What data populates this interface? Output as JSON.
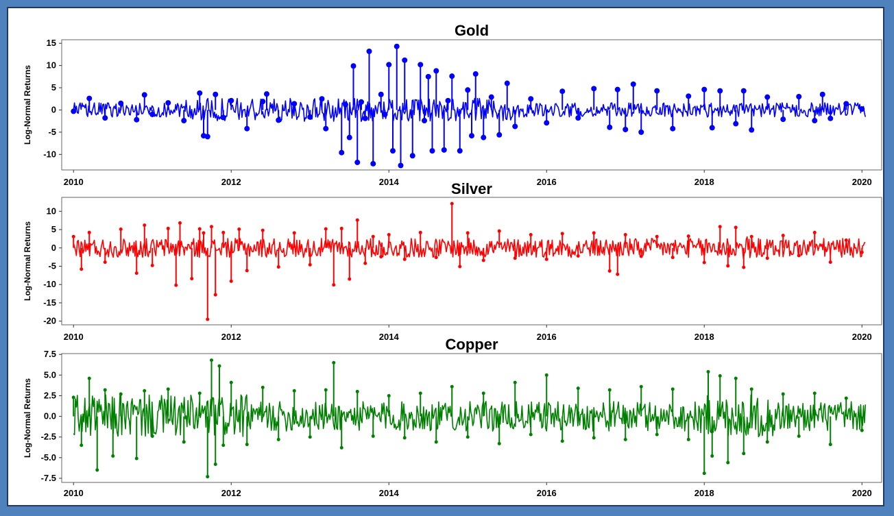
{
  "chart_data": [
    {
      "type": "line",
      "title": "Gold",
      "xlabel": "",
      "ylabel": "Log-Normal Returns",
      "xlim": [
        2009.85,
        2020.25
      ],
      "ylim": [
        -13.5,
        15.8
      ],
      "xticks": [
        2010,
        2012,
        2014,
        2016,
        2018,
        2020
      ],
      "yticks": [
        -10,
        -5,
        0,
        5,
        10,
        15
      ],
      "ytick_labels": [
        "-10",
        "-5",
        "0",
        "5",
        "10",
        "15"
      ],
      "color": "#0000ff",
      "grid": false,
      "series": [
        {
          "x": [
            2010.0,
            2010.2,
            2010.4,
            2010.6,
            2010.8,
            2010.9,
            2011.0,
            2011.2,
            2011.4,
            2011.6,
            2011.65,
            2011.7,
            2011.8,
            2011.9,
            2012.0,
            2012.2,
            2012.4,
            2012.45,
            2012.6,
            2012.8,
            2013.0,
            2013.15,
            2013.2,
            2013.4,
            2013.45,
            2013.5,
            2013.55,
            2013.6,
            2013.65,
            2013.7,
            2013.75,
            2013.8,
            2013.9,
            2013.95,
            2014.0,
            2014.05,
            2014.1,
            2014.15,
            2014.2,
            2014.3,
            2014.4,
            2014.45,
            2014.5,
            2014.55,
            2014.6,
            2014.7,
            2014.75,
            2014.8,
            2014.9,
            2015.0,
            2015.05,
            2015.1,
            2015.2,
            2015.3,
            2015.4,
            2015.5,
            2015.6,
            2015.8,
            2016.0,
            2016.2,
            2016.4,
            2016.6,
            2016.8,
            2016.9,
            2017.0,
            2017.1,
            2017.2,
            2017.4,
            2017.6,
            2017.8,
            2018.0,
            2018.1,
            2018.2,
            2018.4,
            2018.5,
            2018.6,
            2018.8,
            2019.0,
            2019.2,
            2019.4,
            2019.5,
            2019.6,
            2019.8,
            2020.0
          ],
          "y": [
            -0.3,
            2.6,
            -1.8,
            1.5,
            -2.2,
            3.4,
            -1.0,
            1.6,
            -2.4,
            3.8,
            -5.8,
            -6.0,
            3.5,
            -1.7,
            2.1,
            -4.2,
            1.9,
            3.6,
            -2.3,
            1.4,
            -1.6,
            2.5,
            -4.2,
            -9.6,
            1.2,
            -6.2,
            9.9,
            -11.8,
            1.8,
            -1.9,
            13.2,
            -12.1,
            3.5,
            -1.0,
            10.2,
            -9.2,
            14.3,
            -12.5,
            11.2,
            -10.3,
            10.2,
            -2.4,
            7.5,
            -9.2,
            8.8,
            -9.0,
            2.1,
            7.6,
            -9.2,
            4.5,
            -5.8,
            8.1,
            -6.2,
            2.9,
            -5.6,
            6.0,
            -3.7,
            2.5,
            -2.9,
            4.2,
            -1.8,
            4.8,
            -3.9,
            4.6,
            -4.4,
            5.8,
            -5.0,
            4.3,
            -4.2,
            3.1,
            4.6,
            -4.0,
            4.3,
            -3.1,
            4.3,
            -4.5,
            2.9,
            -2.1,
            3.0,
            -2.4,
            3.5,
            -1.9,
            1.4,
            0.2
          ]
        }
      ]
    },
    {
      "type": "line",
      "title": "Silver",
      "xlabel": "",
      "ylabel": "Log-Normal Returns",
      "xlim": [
        2009.85,
        2020.25
      ],
      "ylim": [
        -21.0,
        13.8
      ],
      "xticks": [
        2010,
        2012,
        2014,
        2016,
        2018,
        2020
      ],
      "yticks": [
        -20,
        -15,
        -10,
        -5,
        0,
        5,
        10
      ],
      "ytick_labels": [
        "-20",
        "-15",
        "-10",
        "-5",
        "0",
        "5",
        "10"
      ],
      "color": "#ff0000",
      "grid": false,
      "series": [
        {
          "x": [
            2010.0,
            2010.1,
            2010.2,
            2010.4,
            2010.6,
            2010.8,
            2010.9,
            2011.0,
            2011.2,
            2011.3,
            2011.35,
            2011.5,
            2011.6,
            2011.65,
            2011.7,
            2011.75,
            2011.8,
            2011.9,
            2012.0,
            2012.1,
            2012.2,
            2012.4,
            2012.6,
            2012.8,
            2013.0,
            2013.2,
            2013.3,
            2013.4,
            2013.5,
            2013.6,
            2013.7,
            2013.8,
            2013.9,
            2014.0,
            2014.2,
            2014.4,
            2014.6,
            2014.8,
            2014.9,
            2015.0,
            2015.2,
            2015.4,
            2015.6,
            2015.8,
            2016.0,
            2016.2,
            2016.4,
            2016.6,
            2016.8,
            2016.9,
            2017.0,
            2017.2,
            2017.4,
            2017.6,
            2017.8,
            2018.0,
            2018.2,
            2018.3,
            2018.4,
            2018.5,
            2018.6,
            2018.8,
            2019.0,
            2019.2,
            2019.4,
            2019.6,
            2019.8,
            2020.0
          ],
          "y": [
            3.1,
            -5.8,
            4.2,
            -3.9,
            5.1,
            -6.9,
            6.2,
            -4.8,
            5.3,
            -10.2,
            6.8,
            -8.4,
            5.2,
            4.1,
            -19.5,
            5.8,
            -12.8,
            4.2,
            -9.1,
            5.1,
            -6.2,
            4.8,
            -5.2,
            4.1,
            -4.6,
            5.2,
            -10.1,
            5.3,
            -8.5,
            7.6,
            -4.2,
            3.1,
            -2.4,
            3.6,
            -3.1,
            4.2,
            -2.6,
            12.1,
            -5.1,
            4.1,
            -3.4,
            4.6,
            -2.8,
            3.6,
            -3.1,
            3.9,
            -2.2,
            4.1,
            -6.3,
            -7.2,
            3.6,
            -2.3,
            3.1,
            -2.6,
            3.2,
            -4.0,
            5.8,
            -4.9,
            5.6,
            -5.3,
            3.1,
            -2.8,
            3.4,
            -2.1,
            4.2,
            -3.9,
            2.1,
            -1.2
          ]
        }
      ]
    },
    {
      "type": "line",
      "title": "Copper",
      "xlabel": "",
      "ylabel": "Log-Normal Returns",
      "xlim": [
        2009.85,
        2020.25
      ],
      "ylim": [
        -8.0,
        7.6
      ],
      "xticks": [
        2010,
        2012,
        2014,
        2016,
        2018,
        2020
      ],
      "yticks": [
        -7.5,
        -5.0,
        -2.5,
        0.0,
        2.5,
        5.0,
        7.5
      ],
      "ytick_labels": [
        "-7.5",
        "-5.0",
        "-2.5",
        "0.0",
        "2.5",
        "5.0",
        "7.5"
      ],
      "color": "#008000",
      "grid": false,
      "series": [
        {
          "x": [
            2010.0,
            2010.1,
            2010.2,
            2010.3,
            2010.4,
            2010.5,
            2010.6,
            2010.8,
            2010.9,
            2011.0,
            2011.2,
            2011.4,
            2011.6,
            2011.7,
            2011.75,
            2011.8,
            2011.85,
            2011.9,
            2012.0,
            2012.2,
            2012.4,
            2012.6,
            2012.8,
            2013.0,
            2013.2,
            2013.3,
            2013.4,
            2013.6,
            2013.8,
            2014.0,
            2014.2,
            2014.4,
            2014.6,
            2014.8,
            2015.0,
            2015.2,
            2015.4,
            2015.6,
            2015.8,
            2016.0,
            2016.2,
            2016.4,
            2016.6,
            2016.8,
            2017.0,
            2017.2,
            2017.4,
            2017.6,
            2017.8,
            2018.0,
            2018.05,
            2018.1,
            2018.2,
            2018.3,
            2018.4,
            2018.5,
            2018.6,
            2018.8,
            2019.0,
            2019.2,
            2019.4,
            2019.6,
            2019.8,
            2020.0
          ],
          "y": [
            2.3,
            -3.5,
            4.6,
            -6.5,
            3.2,
            -4.8,
            2.7,
            -5.1,
            3.1,
            -2.4,
            3.3,
            -3.1,
            2.8,
            -7.3,
            6.8,
            -5.8,
            6.1,
            -3.5,
            4.1,
            -3.4,
            3.5,
            -2.8,
            3.1,
            -2.5,
            3.2,
            6.5,
            -3.8,
            3.0,
            -2.4,
            2.5,
            -2.6,
            2.8,
            -3.1,
            3.6,
            -2.5,
            2.8,
            -3.3,
            4.1,
            -2.2,
            5.0,
            -3.0,
            3.4,
            -2.6,
            3.2,
            -2.8,
            3.6,
            -2.2,
            3.3,
            -2.8,
            -6.9,
            5.4,
            -4.8,
            4.9,
            -5.6,
            4.6,
            -4.5,
            3.3,
            -3.1,
            2.7,
            -2.4,
            2.8,
            -3.4,
            2.2,
            -1.7
          ]
        }
      ]
    }
  ]
}
